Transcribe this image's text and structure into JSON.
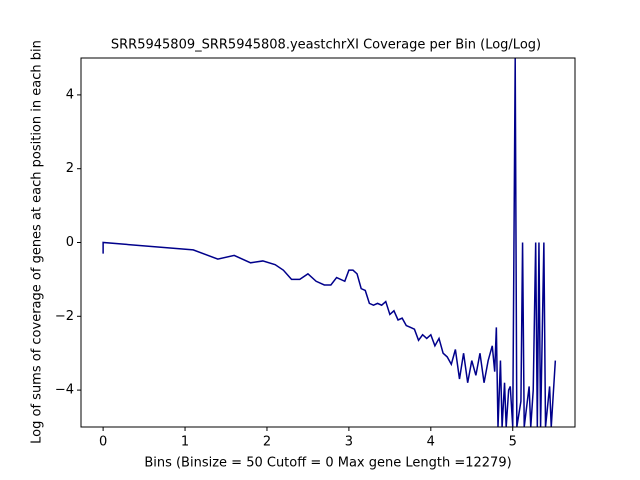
{
  "chart_data": {
    "type": "line",
    "title": "SRR5945809_SRR5945808.yeastchrXI Coverage per Bin (Log/Log)",
    "x_label": "Bins  (Binsize = 50 Cutoff = 0 Max gene Length =12279)",
    "y_label": "Log of sums of coverage of genes at each position in each bin",
    "x": [
      0,
      0,
      1.1,
      1.4,
      1.6,
      1.8,
      1.95,
      2.1,
      2.2,
      2.3,
      2.4,
      2.5,
      2.6,
      2.7,
      2.78,
      2.85,
      2.95,
      3.0,
      3.05,
      3.1,
      3.15,
      3.2,
      3.25,
      3.3,
      3.35,
      3.4,
      3.45,
      3.5,
      3.55,
      3.6,
      3.65,
      3.7,
      3.75,
      3.8,
      3.85,
      3.9,
      3.95,
      4.0,
      4.05,
      4.1,
      4.15,
      4.2,
      4.25,
      4.3,
      4.35,
      4.4,
      4.45,
      4.5,
      4.55,
      4.6,
      4.65,
      4.7,
      4.75,
      4.78,
      4.8,
      4.82,
      4.85,
      4.87,
      4.9,
      4.92,
      4.95,
      4.97,
      5.0,
      5.03,
      5.05,
      5.1,
      5.12,
      5.14,
      5.2,
      5.22,
      5.25,
      5.28,
      5.3,
      5.32,
      5.34,
      5.38,
      5.4,
      5.45,
      5.47,
      5.52
    ],
    "series": [
      {
        "name": "coverage",
        "color": "#00008b",
        "values": [
          -0.3,
          0,
          -0.2,
          -0.45,
          -0.35,
          -0.55,
          -0.5,
          -0.6,
          -0.75,
          -1.0,
          -1.0,
          -0.85,
          -1.05,
          -1.15,
          -1.15,
          -0.95,
          -1.05,
          -0.75,
          -0.75,
          -0.85,
          -1.25,
          -1.3,
          -1.65,
          -1.7,
          -1.65,
          -1.7,
          -1.6,
          -1.95,
          -1.85,
          -2.1,
          -2.05,
          -2.25,
          -2.3,
          -2.35,
          -2.65,
          -2.5,
          -2.6,
          -2.5,
          -2.8,
          -2.6,
          -3.0,
          -3.1,
          -3.3,
          -2.9,
          -3.7,
          -3.0,
          -3.8,
          -3.2,
          -3.6,
          -3.0,
          -3.8,
          -3.2,
          -2.8,
          -3.5,
          -2.3,
          -5,
          -3.2,
          -5,
          -3.8,
          -5,
          -4,
          -3.9,
          -5,
          5,
          -5,
          -4.3,
          0,
          -5,
          -3.9,
          -5,
          -4,
          0,
          -5,
          0,
          -5,
          0,
          -5,
          -3.9,
          -5,
          -3.2
        ]
      }
    ],
    "xlim": [
      -0.27,
      5.76
    ],
    "ylim": [
      -5,
      5
    ],
    "xticks": [
      0,
      1,
      2,
      3,
      4,
      5
    ],
    "yticks": [
      {
        "value": -4,
        "label": "−4"
      },
      {
        "value": -2,
        "label": "−2"
      },
      0,
      2,
      4
    ]
  }
}
